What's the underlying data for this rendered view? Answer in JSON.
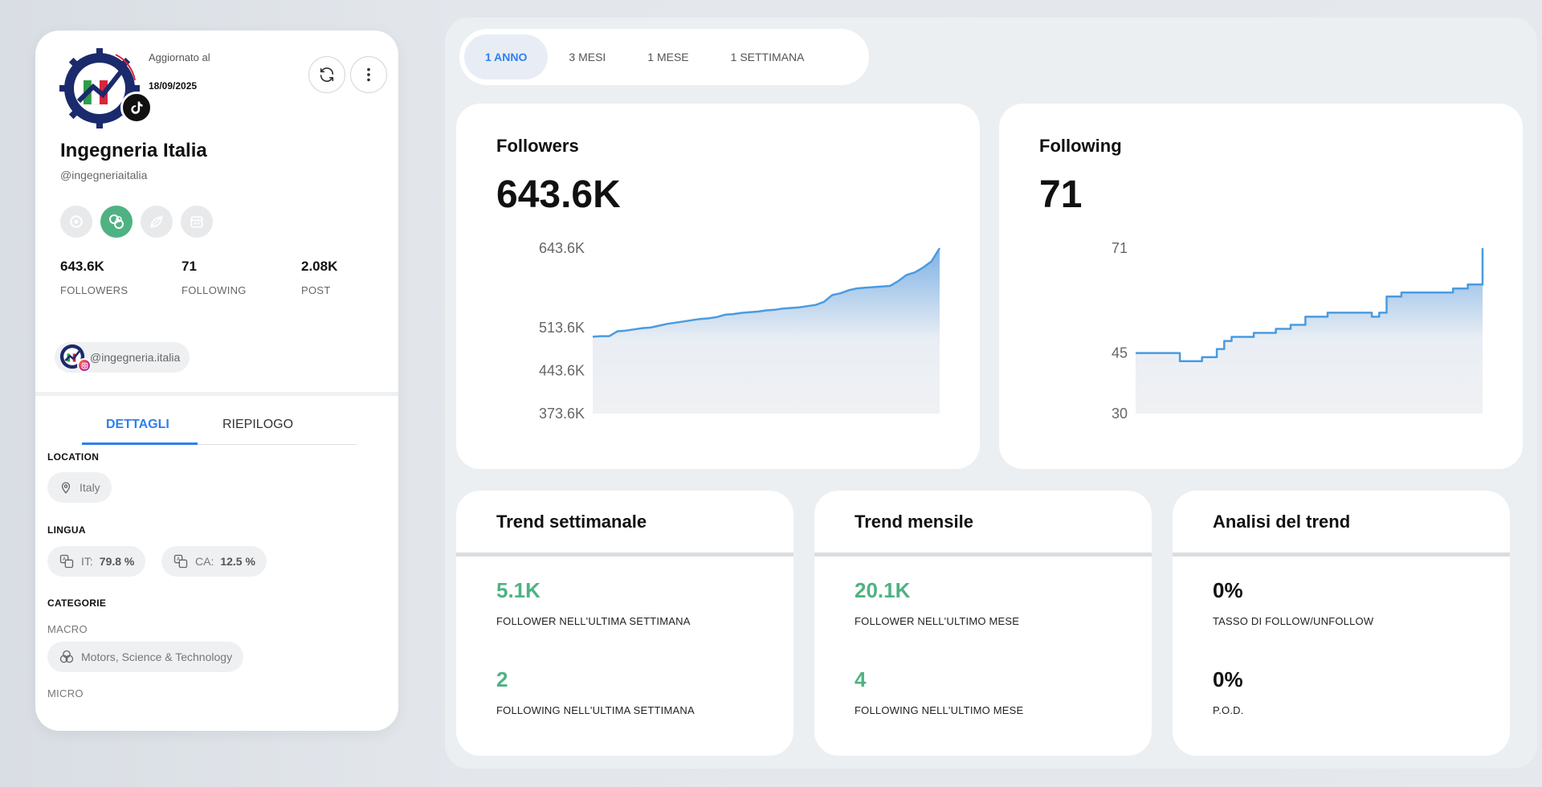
{
  "profile": {
    "updated_label": "Aggiornato al",
    "updated_date": "18/09/2025",
    "name": "Ingegneria Italia",
    "handle": "@ingegneriaitalia",
    "platform_icon": "tiktok-icon",
    "stats": [
      {
        "value": "643.6K",
        "label": "FOLLOWERS"
      },
      {
        "value": "71",
        "label": "FOLLOWING"
      },
      {
        "value": "2.08K",
        "label": "POST"
      }
    ],
    "linked_account": "@ingegneria.italia",
    "linked_platform_icon": "instagram-icon"
  },
  "details_tabs": [
    "DETTAGLI",
    "RIEPILOGO"
  ],
  "details": {
    "location_title": "LOCATION",
    "location": "Italy",
    "language_title": "LINGUA",
    "languages": [
      {
        "code": "IT:",
        "percent": "79.8 %"
      },
      {
        "code": "CA:",
        "percent": "12.5 %"
      }
    ],
    "categories_title": "CATEGORIE",
    "macro_label": "MACRO",
    "macro_category": "Motors, Science & Technology",
    "micro_label": "MICRO"
  },
  "period_tabs": [
    "1 ANNO",
    "3 MESI",
    "1 MESE",
    "1 SETTIMANA"
  ],
  "active_period": "1 ANNO",
  "colors": {
    "accent_blue": "#2f80ed",
    "green": "#4fb283",
    "line": "#4a9be0"
  },
  "charts": {
    "followers": {
      "title": "Followers",
      "value": "643.6K",
      "ticks": [
        "643.6K",
        "513.6K",
        "443.6K",
        "373.6K"
      ]
    },
    "following": {
      "title": "Following",
      "value": "71",
      "ticks": [
        "71",
        "45",
        "30"
      ]
    }
  },
  "chart_data": [
    {
      "type": "area",
      "title": "Followers",
      "ylim": [
        373.6,
        643.6
      ],
      "yticks": [
        643.6,
        513.6,
        443.6,
        373.6
      ],
      "unit": "K",
      "values": [
        499,
        500,
        500,
        508,
        509,
        511,
        513,
        514,
        517,
        520,
        522,
        524,
        526,
        528,
        529,
        531,
        535,
        536,
        538,
        539,
        540,
        542,
        543,
        545,
        546,
        547,
        549,
        551,
        556,
        567,
        570,
        575,
        578,
        579,
        580,
        581,
        582,
        590,
        600,
        604,
        612,
        622,
        643.6
      ]
    },
    {
      "type": "area",
      "title": "Following",
      "ylim": [
        30,
        71
      ],
      "yticks": [
        71,
        45,
        30
      ],
      "values": [
        45,
        45,
        45,
        45,
        45,
        45,
        43,
        43,
        43,
        44,
        44,
        46,
        48,
        49,
        49,
        49,
        50,
        50,
        50,
        51,
        51,
        52,
        52,
        54,
        54,
        54,
        55,
        55,
        55,
        55,
        55,
        55,
        54,
        55,
        59,
        59,
        60,
        60,
        60,
        60,
        60,
        60,
        60,
        61,
        61,
        62,
        62,
        71
      ]
    }
  ],
  "trends": [
    {
      "title": "Trend settimanale",
      "items": [
        {
          "value": "5.1K",
          "label": "FOLLOWER NELL'ULTIMA SETTIMANA",
          "style": "green"
        },
        {
          "value": "2",
          "label": "FOLLOWING NELL'ULTIMA SETTIMANA",
          "style": "green"
        }
      ]
    },
    {
      "title": "Trend mensile",
      "items": [
        {
          "value": "20.1K",
          "label": "FOLLOWER NELL'ULTIMO MESE",
          "style": "green"
        },
        {
          "value": "4",
          "label": "FOLLOWING NELL'ULTIMO MESE",
          "style": "green"
        }
      ]
    },
    {
      "title": "Analisi del trend",
      "items": [
        {
          "value": "0%",
          "label": "TASSO DI FOLLOW/UNFOLLOW",
          "style": "dark"
        },
        {
          "value": "0%",
          "label": "P.O.D.",
          "style": "dark"
        }
      ]
    }
  ]
}
